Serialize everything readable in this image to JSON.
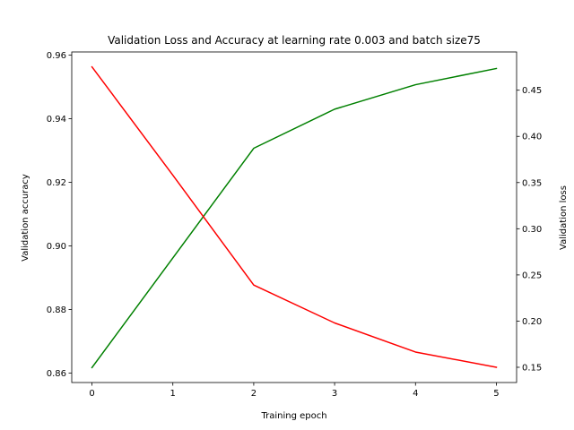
{
  "chart_data": {
    "type": "line",
    "title": "Validation Loss and Accuracy at learning rate 0.003 and batch size75",
    "xlabel": "Training epoch",
    "ylabel_left": "Validation accuracy",
    "ylabel_right": "Validation loss",
    "x": [
      0,
      1,
      2,
      3,
      4,
      5
    ],
    "xlim": [
      -0.25,
      5.25
    ],
    "xticks": [
      "0",
      "1",
      "2",
      "3",
      "4",
      "5"
    ],
    "ylim_left": [
      0.857,
      0.961
    ],
    "yticks_left": [
      "0.86",
      "0.88",
      "0.90",
      "0.92",
      "0.94",
      "0.96"
    ],
    "ylim_right": [
      0.1335,
      0.4914
    ],
    "yticks_right": [
      "0.15",
      "0.20",
      "0.25",
      "0.30",
      "0.35",
      "0.40",
      "0.45"
    ],
    "grid": false,
    "series": [
      {
        "axis": "left",
        "color": "#008000",
        "values": [
          0.8617,
          0.8962,
          0.9307,
          0.943,
          0.9507,
          0.9558
        ]
      },
      {
        "axis": "right",
        "color": "#ff0000",
        "values": [
          0.4752,
          0.358,
          0.239,
          0.198,
          0.1665,
          0.15
        ]
      }
    ]
  }
}
